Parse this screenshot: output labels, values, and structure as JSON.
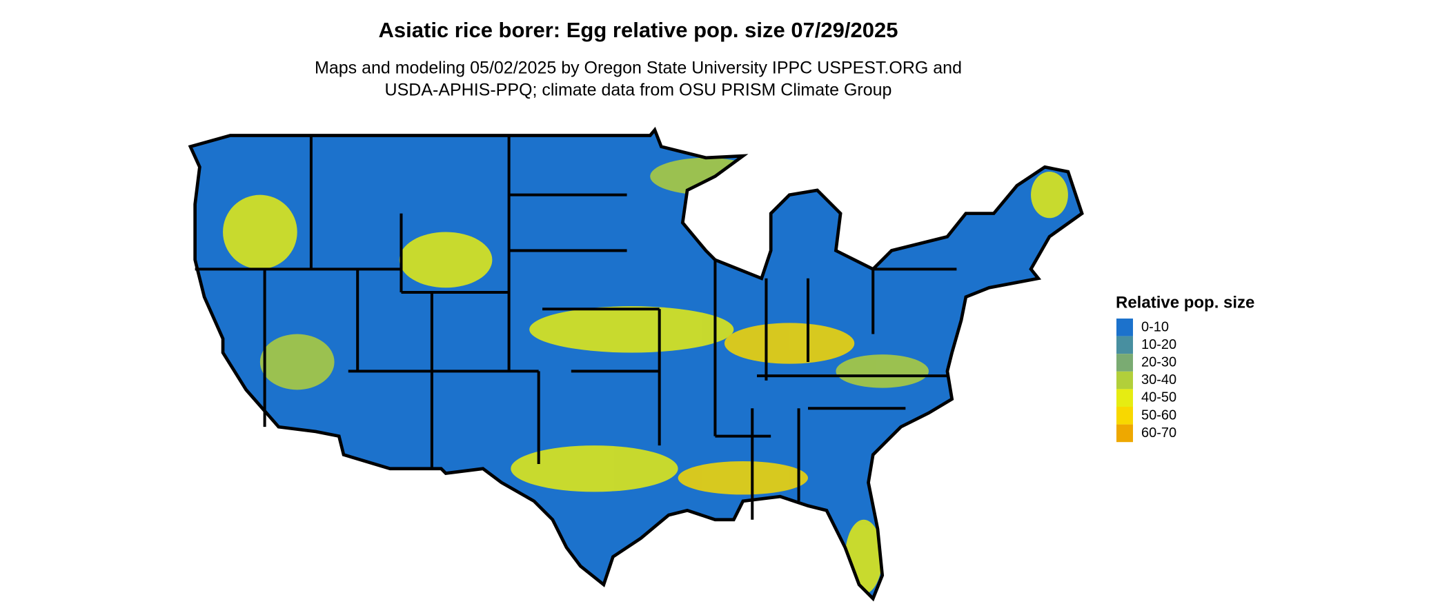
{
  "title": "Asiatic rice borer: Egg relative pop. size 07/29/2025",
  "subtitle": [
    "Maps and modeling 05/02/2025 by Oregon State University IPPC USPEST.ORG and",
    "USDA-APHIS-PPQ; climate data from OSU PRISM Climate Group"
  ],
  "legend": {
    "title": "Relative pop. size",
    "items": [
      {
        "label": "0-10",
        "color": "#1c72cc"
      },
      {
        "label": "10-20",
        "color": "#488fa0"
      },
      {
        "label": "20-30",
        "color": "#7aab72"
      },
      {
        "label": "30-40",
        "color": "#b2cf3a"
      },
      {
        "label": "40-50",
        "color": "#e6ec12"
      },
      {
        "label": "50-60",
        "color": "#f8d800"
      },
      {
        "label": "60-70",
        "color": "#eea800"
      }
    ]
  }
}
